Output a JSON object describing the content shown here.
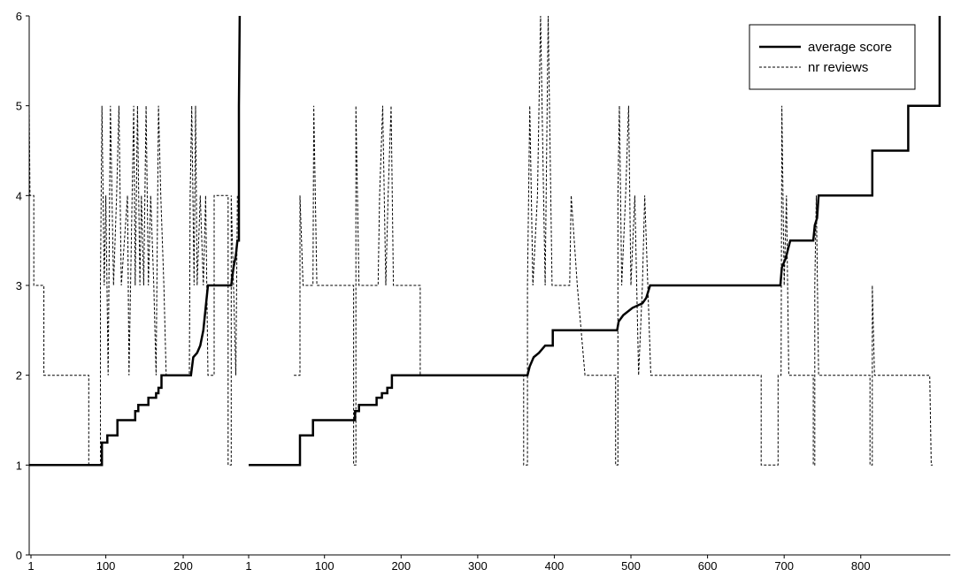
{
  "chart_data": {
    "type": "line",
    "ylim": [
      0,
      6
    ],
    "y_ticks": [
      "0",
      "1",
      "2",
      "3",
      "4",
      "5",
      "6"
    ],
    "grid": false,
    "legend_placement": "top-right",
    "legend": [
      {
        "label": "average score",
        "style": "solid"
      },
      {
        "label": "nr reviews",
        "style": "dashed"
      }
    ],
    "x_ticks": [
      "1",
      "100",
      "200",
      "1",
      "100",
      "200",
      "300",
      "400",
      "500",
      "600",
      "700",
      "800"
    ],
    "panels": [
      {
        "x_start": 1,
        "x_end": 280,
        "average_score": [
          [
            1,
            1
          ],
          [
            95,
            1
          ],
          [
            95,
            1.25
          ],
          [
            102,
            1.25
          ],
          [
            102,
            1.33
          ],
          [
            115,
            1.33
          ],
          [
            115,
            1.5
          ],
          [
            138,
            1.5
          ],
          [
            138,
            1.6
          ],
          [
            142,
            1.6
          ],
          [
            142,
            1.67
          ],
          [
            155,
            1.67
          ],
          [
            155,
            1.75
          ],
          [
            165,
            1.75
          ],
          [
            165,
            1.8
          ],
          [
            168,
            1.8
          ],
          [
            168,
            1.86
          ],
          [
            172,
            1.86
          ],
          [
            172,
            2
          ],
          [
            210,
            2
          ],
          [
            213,
            2.2
          ],
          [
            218,
            2.25
          ],
          [
            222,
            2.33
          ],
          [
            226,
            2.5
          ],
          [
            229,
            2.75
          ],
          [
            232,
            3
          ],
          [
            262,
            3
          ],
          [
            265,
            3.2
          ],
          [
            268,
            3.33
          ],
          [
            270,
            3.5
          ],
          [
            272,
            3.5
          ],
          [
            272,
            5
          ],
          [
            273,
            6
          ]
        ],
        "nr_reviews": [
          [
            1,
            5
          ],
          [
            2,
            4
          ],
          [
            7,
            4
          ],
          [
            7,
            3
          ],
          [
            20,
            3
          ],
          [
            20,
            2
          ],
          [
            78,
            2
          ],
          [
            78,
            1
          ],
          [
            93,
            1
          ],
          [
            93,
            3
          ],
          [
            95,
            5
          ],
          [
            98,
            3
          ],
          [
            100,
            4
          ],
          [
            103,
            2
          ],
          [
            106,
            5
          ],
          [
            110,
            3
          ],
          [
            114,
            4
          ],
          [
            117,
            5
          ],
          [
            120,
            3
          ],
          [
            128,
            4
          ],
          [
            130,
            2
          ],
          [
            136,
            5
          ],
          [
            138,
            3
          ],
          [
            141,
            5
          ],
          [
            144,
            3
          ],
          [
            146,
            4
          ],
          [
            149,
            3
          ],
          [
            152,
            5
          ],
          [
            155,
            3
          ],
          [
            158,
            4
          ],
          [
            162,
            3
          ],
          [
            165,
            2
          ],
          [
            168,
            5
          ],
          [
            171,
            4
          ],
          [
            175,
            3
          ],
          [
            178,
            2
          ],
          [
            208,
            2
          ],
          [
            209,
            4
          ],
          [
            211,
            5
          ],
          [
            214,
            3
          ],
          [
            216,
            5
          ],
          [
            218,
            3
          ],
          [
            222,
            4
          ],
          [
            226,
            3
          ],
          [
            229,
            4
          ],
          [
            232,
            2
          ],
          [
            240,
            2
          ],
          [
            240,
            4
          ],
          [
            258,
            4
          ],
          [
            258,
            1
          ],
          [
            262,
            1
          ],
          [
            262,
            4
          ],
          [
            265,
            3
          ],
          [
            268,
            2
          ],
          [
            270,
            4
          ]
        ]
      },
      {
        "x_start": 1,
        "x_end": 910,
        "average_score": [
          [
            1,
            1
          ],
          [
            68,
            1
          ],
          [
            68,
            1.33
          ],
          [
            85,
            1.33
          ],
          [
            85,
            1.5
          ],
          [
            140,
            1.5
          ],
          [
            140,
            1.6
          ],
          [
            145,
            1.6
          ],
          [
            145,
            1.67
          ],
          [
            168,
            1.67
          ],
          [
            168,
            1.75
          ],
          [
            175,
            1.75
          ],
          [
            175,
            1.8
          ],
          [
            182,
            1.8
          ],
          [
            182,
            1.86
          ],
          [
            188,
            1.86
          ],
          [
            188,
            2
          ],
          [
            365,
            2
          ],
          [
            368,
            2.1
          ],
          [
            373,
            2.2
          ],
          [
            380,
            2.25
          ],
          [
            388,
            2.33
          ],
          [
            398,
            2.33
          ],
          [
            398,
            2.5
          ],
          [
            482,
            2.5
          ],
          [
            484,
            2.6
          ],
          [
            490,
            2.67
          ],
          [
            502,
            2.75
          ],
          [
            515,
            2.8
          ],
          [
            520,
            2.86
          ],
          [
            525,
            3
          ],
          [
            695,
            3
          ],
          [
            697,
            3.2
          ],
          [
            702,
            3.3
          ],
          [
            708,
            3.5
          ],
          [
            738,
            3.5
          ],
          [
            740,
            3.67
          ],
          [
            743,
            3.75
          ],
          [
            745,
            4
          ],
          [
            815,
            4
          ],
          [
            815,
            4.5
          ],
          [
            862,
            4.5
          ],
          [
            862,
            5
          ],
          [
            903,
            5
          ],
          [
            903,
            6
          ]
        ],
        "nr_reviews": [
          [
            60,
            2
          ],
          [
            68,
            2
          ],
          [
            68,
            4
          ],
          [
            72,
            3
          ],
          [
            85,
            3
          ],
          [
            86,
            5
          ],
          [
            90,
            3
          ],
          [
            138,
            3
          ],
          [
            138,
            1
          ],
          [
            141,
            1
          ],
          [
            141,
            5
          ],
          [
            145,
            3
          ],
          [
            170,
            3
          ],
          [
            172,
            4
          ],
          [
            176,
            5
          ],
          [
            180,
            3
          ],
          [
            183,
            4
          ],
          [
            187,
            5
          ],
          [
            190,
            3
          ],
          [
            225,
            3
          ],
          [
            225,
            2
          ],
          [
            360,
            2
          ],
          [
            360,
            1
          ],
          [
            365,
            1
          ],
          [
            365,
            3
          ],
          [
            368,
            5
          ],
          [
            372,
            3
          ],
          [
            378,
            4
          ],
          [
            382,
            6
          ],
          [
            386,
            4
          ],
          [
            388,
            3
          ],
          [
            392,
            6
          ],
          [
            397,
            3
          ],
          [
            420,
            3
          ],
          [
            422,
            4
          ],
          [
            430,
            3
          ],
          [
            440,
            2
          ],
          [
            480,
            2
          ],
          [
            480,
            1
          ],
          [
            483,
            1
          ],
          [
            483,
            4
          ],
          [
            485,
            5
          ],
          [
            488,
            3
          ],
          [
            493,
            4
          ],
          [
            497,
            5
          ],
          [
            500,
            3
          ],
          [
            505,
            4
          ],
          [
            510,
            2
          ],
          [
            515,
            3
          ],
          [
            518,
            4
          ],
          [
            522,
            3
          ],
          [
            526,
            2
          ],
          [
            670,
            2
          ],
          [
            670,
            1
          ],
          [
            692,
            1
          ],
          [
            692,
            2
          ],
          [
            696,
            2
          ],
          [
            697,
            5
          ],
          [
            700,
            3
          ],
          [
            703,
            4
          ],
          [
            706,
            2
          ],
          [
            738,
            2
          ],
          [
            738,
            1
          ],
          [
            740,
            1
          ],
          [
            740,
            3
          ],
          [
            742,
            4
          ],
          [
            745,
            2
          ],
          [
            812,
            2
          ],
          [
            812,
            1
          ],
          [
            815,
            1
          ],
          [
            815,
            3
          ],
          [
            818,
            2
          ],
          [
            890,
            2
          ],
          [
            892,
            1
          ],
          [
            894,
            1
          ]
        ]
      }
    ]
  }
}
